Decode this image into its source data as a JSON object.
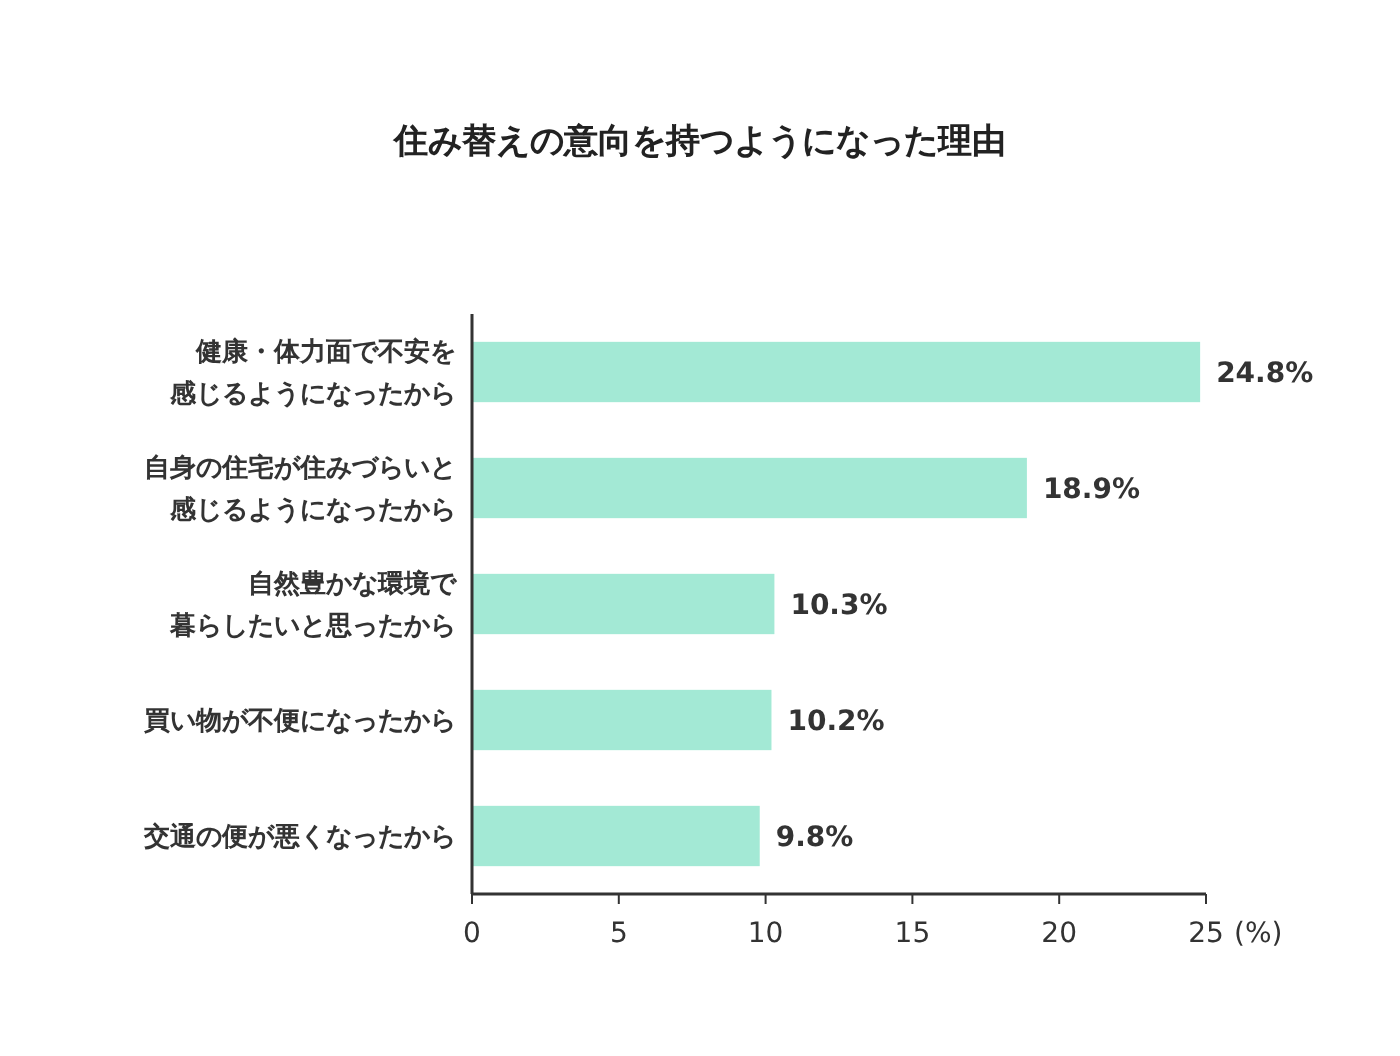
{
  "chart_data": {
    "type": "bar",
    "orientation": "horizontal",
    "title": "住み替えの意向を持つようになった理由",
    "categories": [
      "健康・体力面で不安を感じるようになったから",
      "自身の住宅が住みづらいと感じるようになったから",
      "自然豊かな環境で暮らしたいと思ったから",
      "買い物が不便になったから",
      "交通の便が悪くなったから"
    ],
    "values": [
      24.8,
      18.9,
      10.3,
      10.2,
      9.8
    ],
    "color": "#a3e9d5",
    "value_labels": [
      "24.8%",
      "18.9%",
      "10.3%",
      "10.2%",
      "9.8%"
    ],
    "xlim": [
      0,
      25
    ],
    "xticks": [
      0,
      5,
      10,
      15,
      20,
      25
    ],
    "xlabel": "(%)"
  }
}
